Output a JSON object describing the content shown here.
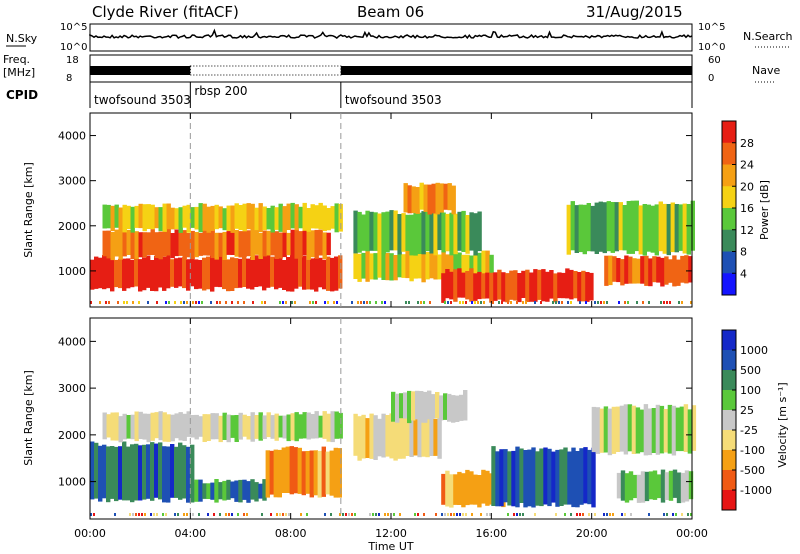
{
  "header": {
    "station": "Clyde River (fitACF)",
    "beam": "Beam 06",
    "date": "31/Aug/2015"
  },
  "sky_panel": {
    "label": "N.Sky",
    "yticks": [
      "10^5",
      "10^0"
    ],
    "right_label": "N.Search",
    "right_ticks": [
      "10^5",
      "10^0"
    ]
  },
  "freq_panel": {
    "label_line1": "Freq.",
    "label_line2": "[MHz]",
    "yticks": [
      "18",
      "8"
    ],
    "right_label": "Nave",
    "right_ticks": [
      "60",
      "0"
    ]
  },
  "cpid": {
    "label": "CPID",
    "segments": [
      {
        "name": "twofsound 3503",
        "start_h": 0,
        "end_h": 4
      },
      {
        "name": "rbsp 200",
        "start_h": 4,
        "end_h": 10
      },
      {
        "name": "twofsound 3503",
        "start_h": 10,
        "end_h": 24
      }
    ]
  },
  "x_axis": {
    "title": "Time UT",
    "ticks": [
      "00:00",
      "04:00",
      "08:00",
      "12:00",
      "16:00",
      "20:00",
      "00:00"
    ]
  },
  "colors": {
    "power": [
      "#1414ff",
      "#1e50b4",
      "#3a8a5a",
      "#5ac83a",
      "#f5d214",
      "#f5a014",
      "#f06414",
      "#e61e14"
    ],
    "velocity": [
      "#e61414",
      "#f05a14",
      "#f5a014",
      "#f5dc78",
      "#c8c8c8",
      "#5ac83a",
      "#3a8a5a",
      "#1e50b4",
      "#1428c8"
    ]
  },
  "chart_data": [
    {
      "type": "heatmap",
      "name": "power",
      "xlabel": "",
      "ylabel": "Slant Range [km]",
      "xlim": [
        0,
        24
      ],
      "ylim": [
        200,
        4500
      ],
      "yticks": [
        "1000",
        "2000",
        "3000",
        "4000"
      ],
      "colorbar_label": "Power [dB]",
      "colorbar_ticks": [
        "4",
        "8",
        "12",
        "16",
        "20",
        "24",
        "28"
      ],
      "bands": [
        {
          "t0": 0.0,
          "t1": 10.0,
          "r0": 600,
          "r1": 1300,
          "level": 7
        },
        {
          "t0": 0.5,
          "t1": 9.5,
          "r0": 1300,
          "r1": 1900,
          "level": 6
        },
        {
          "t0": 0.5,
          "t1": 10.0,
          "r0": 1900,
          "r1": 2450,
          "level": 4
        },
        {
          "t0": 10.5,
          "t1": 16.0,
          "r0": 800,
          "r1": 1400,
          "level": 4
        },
        {
          "t0": 10.5,
          "t1": 15.5,
          "r0": 1400,
          "r1": 2300,
          "level": 3
        },
        {
          "t0": 12.5,
          "t1": 14.5,
          "r0": 2300,
          "r1": 2900,
          "level": 5
        },
        {
          "t0": 14.0,
          "t1": 20.0,
          "r0": 350,
          "r1": 1000,
          "level": 7
        },
        {
          "t0": 19.0,
          "t1": 24.0,
          "r0": 1400,
          "r1": 2500,
          "level": 3
        },
        {
          "t0": 20.5,
          "t1": 24.0,
          "r0": 700,
          "r1": 1300,
          "level": 6
        }
      ]
    },
    {
      "type": "heatmap",
      "name": "velocity",
      "xlabel": "Time UT",
      "ylabel": "Slant Range [km]",
      "xlim": [
        0,
        24
      ],
      "ylim": [
        200,
        4500
      ],
      "yticks": [
        "1000",
        "2000",
        "3000",
        "4000"
      ],
      "colorbar_label": "Velocity [m s⁻¹]",
      "colorbar_ticks": [
        "1000",
        "500",
        "100",
        "25",
        "-25",
        "-100",
        "-500",
        "-1000"
      ],
      "bands": [
        {
          "t0": 0.0,
          "t1": 4.0,
          "r0": 600,
          "r1": 1800,
          "level": 7
        },
        {
          "t0": 4.0,
          "t1": 7.0,
          "r0": 600,
          "r1": 1000,
          "level": 6
        },
        {
          "t0": 7.0,
          "t1": 10.0,
          "r0": 700,
          "r1": 1700,
          "level": 2
        },
        {
          "t0": 0.5,
          "t1": 10.0,
          "r0": 1900,
          "r1": 2450,
          "level": 4
        },
        {
          "t0": 10.5,
          "t1": 14.0,
          "r0": 1500,
          "r1": 2400,
          "level": 3
        },
        {
          "t0": 12.0,
          "t1": 15.0,
          "r0": 2300,
          "r1": 2900,
          "level": 4
        },
        {
          "t0": 14.0,
          "t1": 16.5,
          "r0": 500,
          "r1": 1200,
          "level": 2
        },
        {
          "t0": 16.0,
          "t1": 20.0,
          "r0": 500,
          "r1": 1700,
          "level": 7
        },
        {
          "t0": 20.0,
          "t1": 24.0,
          "r0": 1600,
          "r1": 2600,
          "level": 4
        },
        {
          "t0": 21.0,
          "t1": 24.0,
          "r0": 600,
          "r1": 1200,
          "level": 5
        }
      ]
    }
  ]
}
